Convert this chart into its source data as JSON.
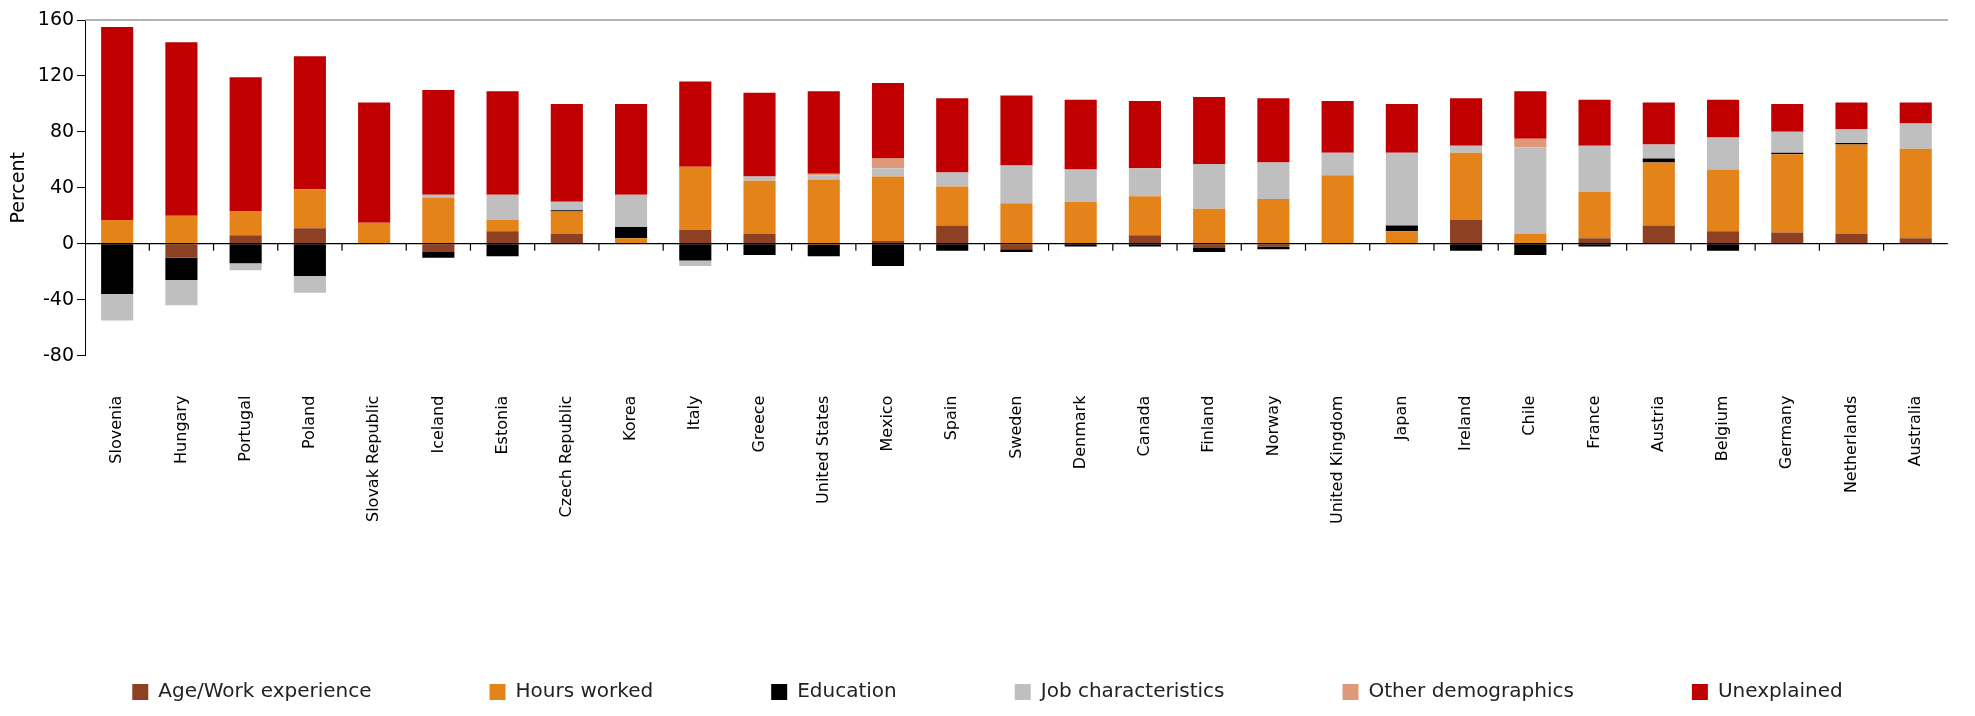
{
  "chart_data": {
    "type": "bar",
    "stacked": true,
    "ylabel": "Percent",
    "categories": [
      "Slovenia",
      "Hungary",
      "Portugal",
      "Poland",
      "Slovak Republic",
      "Iceland",
      "Estonia",
      "Czech Republic",
      "Korea",
      "Italy",
      "Greece",
      "United States",
      "Mexico",
      "Spain",
      "Sweden",
      "Denmark",
      "Canada",
      "Finland",
      "Norway",
      "United Kingdom",
      "Japan",
      "Ireland",
      "Chile",
      "France",
      "Austria",
      "Belgium",
      "Germany",
      "Netherlands",
      "Australia"
    ],
    "series": [
      {
        "name": "Age/Work experience",
        "color": "#8e4122",
        "values": [
          0,
          -10,
          6,
          11,
          0,
          -6,
          9,
          7,
          0,
          10,
          7,
          -1,
          2,
          13,
          -4,
          0,
          6,
          -3,
          -2,
          0,
          0,
          17,
          0,
          4,
          13,
          9,
          8,
          7,
          4
        ]
      },
      {
        "name": "Hours worked",
        "color": "#e3831a",
        "values": [
          17,
          20,
          17,
          28,
          15,
          33,
          8,
          16,
          4,
          45,
          38,
          46,
          46,
          28,
          29,
          30,
          28,
          25,
          32,
          49,
          9,
          48,
          7,
          33,
          45,
          44,
          56,
          64,
          64
        ]
      },
      {
        "name": "Education",
        "color": "#000000",
        "values": [
          -36,
          -16,
          -14,
          -23,
          0,
          -4,
          -9,
          1,
          8,
          -12,
          -8,
          -8,
          -16,
          -5,
          -2,
          -2,
          -2,
          -3,
          -2,
          0,
          4,
          -5,
          -8,
          -2,
          3,
          -5,
          1,
          1,
          0
        ]
      },
      {
        "name": "Job characteristics",
        "color": "#bfbfbf",
        "values": [
          -19,
          -18,
          -5,
          -12,
          0,
          2,
          18,
          6,
          23,
          -4,
          3,
          3,
          6,
          10,
          27,
          23,
          20,
          32,
          26,
          16,
          52,
          5,
          62,
          33,
          10,
          23,
          15,
          10,
          18
        ]
      },
      {
        "name": "Other demographics",
        "color": "#e0987a",
        "values": [
          0,
          0,
          0,
          0,
          0,
          0,
          0,
          0,
          0,
          0,
          0,
          1,
          7,
          0,
          0,
          0,
          0,
          0,
          0,
          0,
          0,
          0,
          6,
          0,
          0,
          0,
          0,
          0,
          0
        ]
      },
      {
        "name": "Unexplained",
        "color": "#c00000",
        "values": [
          138,
          124,
          96,
          95,
          86,
          75,
          74,
          70,
          65,
          61,
          60,
          59,
          54,
          53,
          50,
          50,
          48,
          48,
          46,
          37,
          35,
          34,
          34,
          33,
          30,
          27,
          20,
          19,
          15
        ]
      }
    ],
    "ylim": [
      -80,
      160
    ],
    "yticks": [
      -80,
      -40,
      0,
      40,
      80,
      120,
      160
    ],
    "legend": "bottom"
  }
}
